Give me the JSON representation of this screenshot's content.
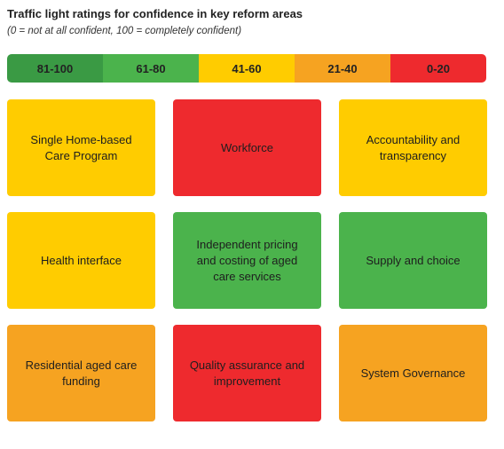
{
  "title": "Traffic light ratings for confidence in key reform areas",
  "subtitle": "(0 = not at all confident, 100 = completely confident)",
  "colors": {
    "dark_green": "#3a9a44",
    "green": "#4bb34c",
    "yellow": "#ffcc00",
    "orange": "#f6a321",
    "red": "#ee2a2e"
  },
  "legend": [
    {
      "label": "81-100",
      "color": "#3a9a44"
    },
    {
      "label": "61-80",
      "color": "#4bb34c"
    },
    {
      "label": "41-60",
      "color": "#ffcc00"
    },
    {
      "label": "21-40",
      "color": "#f6a321"
    },
    {
      "label": "0-20",
      "color": "#ee2a2e"
    }
  ],
  "cards": [
    {
      "label": "Single Home-based\nCare Program",
      "rating": "41-60",
      "color": "#ffcc00"
    },
    {
      "label": "Workforce",
      "rating": "0-20",
      "color": "#ee2a2e"
    },
    {
      "label": "Accountability and\ntransparency",
      "rating": "41-60",
      "color": "#ffcc00"
    },
    {
      "label": "Health interface",
      "rating": "41-60",
      "color": "#ffcc00"
    },
    {
      "label": "Independent pricing\nand costing of aged\ncare services",
      "rating": "61-80",
      "color": "#4bb34c"
    },
    {
      "label": "Supply and choice",
      "rating": "61-80",
      "color": "#4bb34c"
    },
    {
      "label": "Residential aged care\nfunding",
      "rating": "21-40",
      "color": "#f6a321"
    },
    {
      "label": "Quality assurance and\nimprovement",
      "rating": "0-20",
      "color": "#ee2a2e"
    },
    {
      "label": "System Governance",
      "rating": "21-40",
      "color": "#f6a321"
    }
  ]
}
